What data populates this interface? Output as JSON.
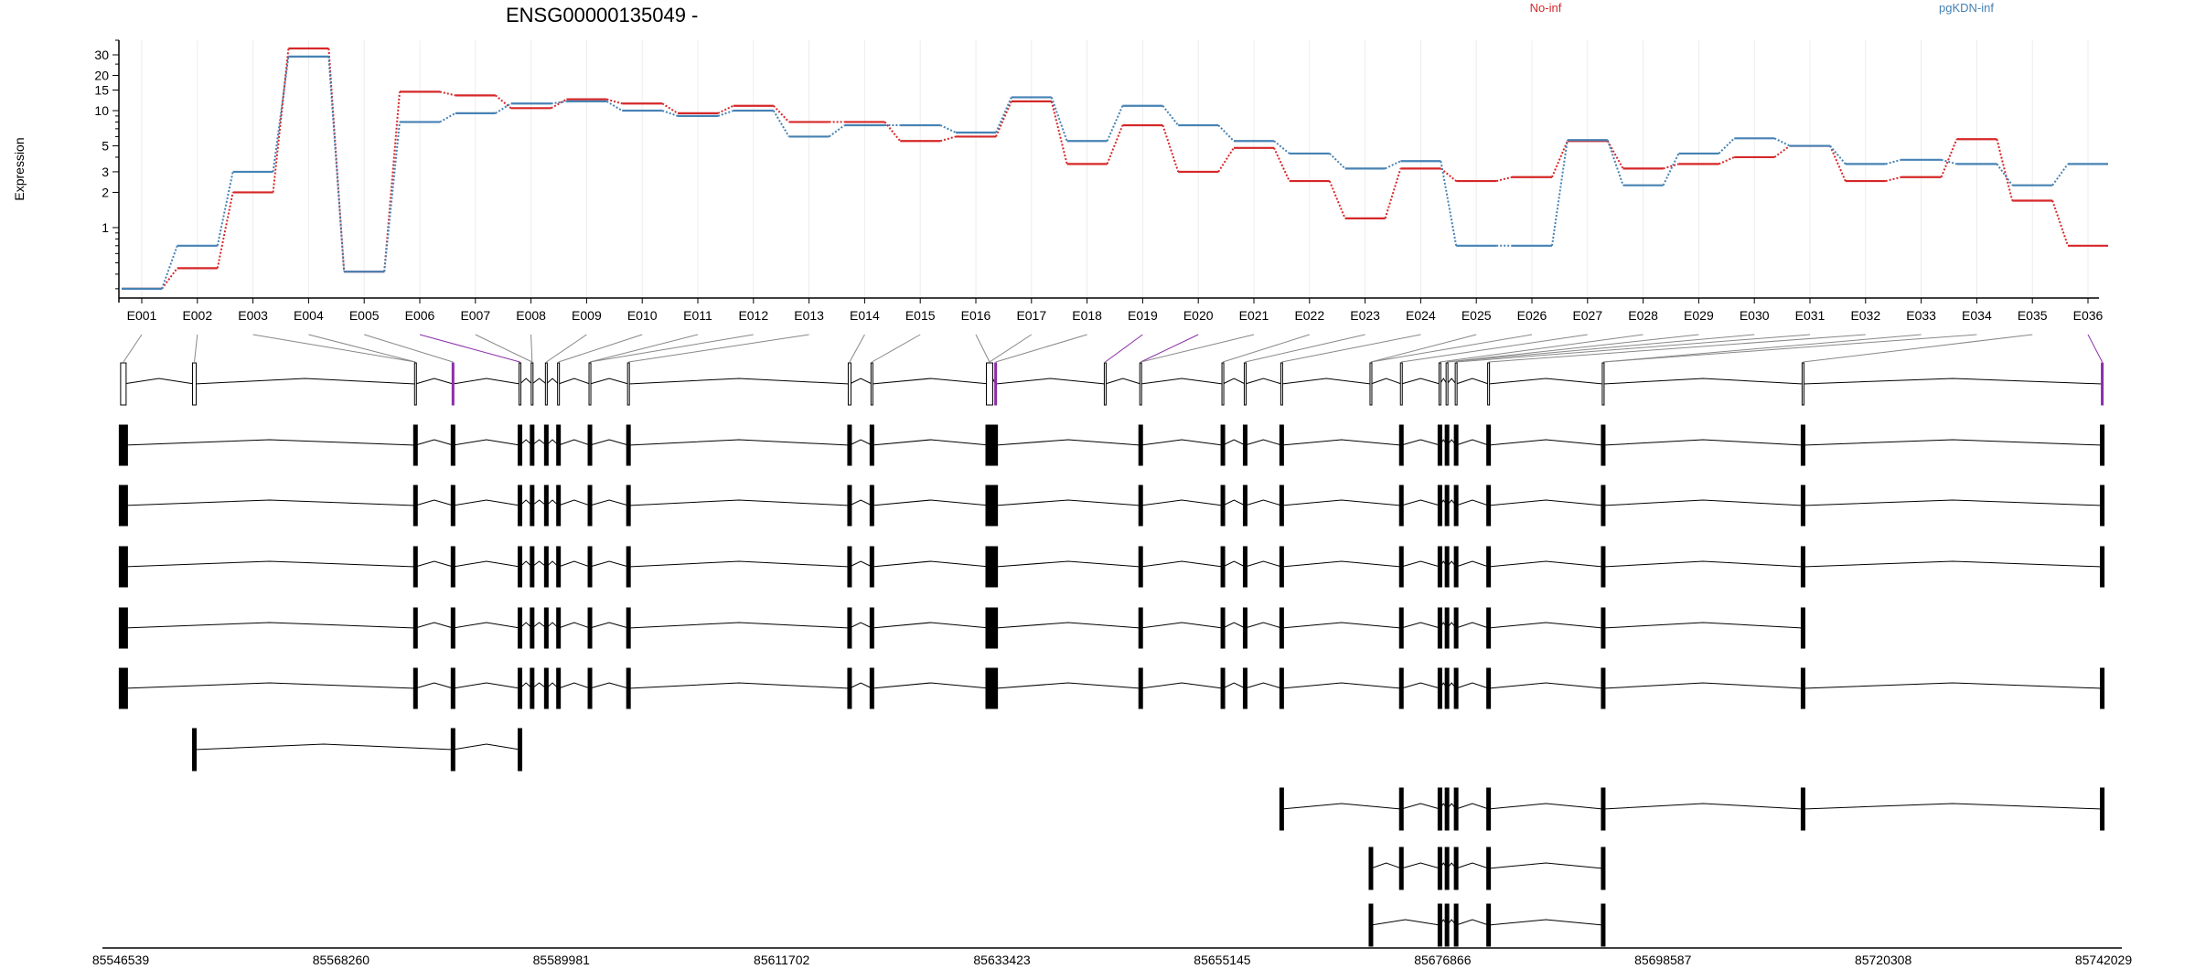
{
  "chart_data": {
    "type": "line",
    "title": "ENSG00000135049 -",
    "ylabel": "Expression",
    "y_scale": "log",
    "y_ticks": [
      "1",
      "2",
      "3",
      "5",
      "10",
      "15",
      "20",
      "30"
    ],
    "categories": [
      "E001",
      "E002",
      "E003",
      "E004",
      "E005",
      "E006",
      "E007",
      "E008",
      "E009",
      "E010",
      "E011",
      "E012",
      "E013",
      "E014",
      "E015",
      "E016",
      "E017",
      "E018",
      "E019",
      "E020",
      "E021",
      "E022",
      "E023",
      "E024",
      "E025",
      "E026",
      "E027",
      "E028",
      "E029",
      "E030",
      "E031",
      "E032",
      "E033",
      "E034",
      "E035",
      "E036"
    ],
    "series": [
      {
        "name": "No-inf",
        "color": "#d62728",
        "values": [
          0.3,
          0.45,
          2.0,
          34,
          0.42,
          14.5,
          13.5,
          10.5,
          12.5,
          11.5,
          9.5,
          11.0,
          8.0,
          8.0,
          5.5,
          6.0,
          12.0,
          3.5,
          7.5,
          3.0,
          4.8,
          2.5,
          1.2,
          3.2,
          2.5,
          2.7,
          5.5,
          3.2,
          3.5,
          4.0,
          5.0,
          2.5,
          2.7,
          5.7,
          1.7,
          0.7
        ]
      },
      {
        "name": "pgKDN-inf",
        "color": "#4682b4",
        "values": [
          0.3,
          0.7,
          3.0,
          29,
          0.42,
          8.0,
          9.5,
          11.5,
          12.0,
          10.0,
          9.0,
          10.0,
          6.0,
          7.5,
          7.5,
          6.5,
          13.0,
          5.5,
          11.0,
          7.5,
          5.5,
          4.3,
          3.2,
          3.7,
          0.7,
          0.7,
          5.6,
          2.3,
          4.3,
          5.8,
          5.0,
          3.5,
          3.8,
          3.5,
          2.3,
          3.5
        ]
      }
    ],
    "genomic_axis_ticks": [
      "85546539",
      "85568260",
      "85589981",
      "85611702",
      "85633423",
      "85655145",
      "85676866",
      "85698587",
      "85720308",
      "85742029"
    ]
  }
}
